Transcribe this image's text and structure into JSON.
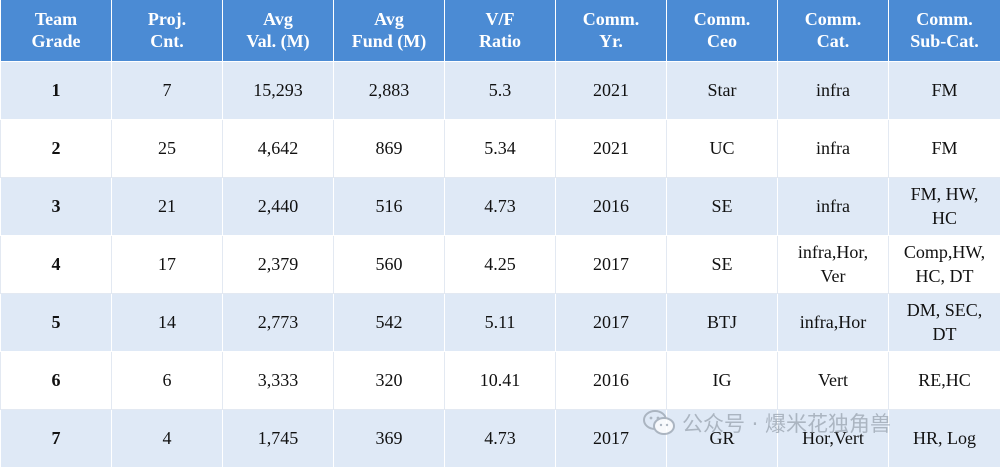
{
  "columns": [
    "Team\nGrade",
    "Proj.\nCnt.",
    "Avg\nVal. (M)",
    "Avg\nFund (M)",
    "V/F\nRatio",
    "Comm.\nYr.",
    "Comm.\nCeo",
    "Comm.\nCat.",
    "Comm.\nSub-Cat."
  ],
  "rows": [
    [
      "1",
      "7",
      "15,293",
      "2,883",
      "5.3",
      "2021",
      "Star",
      "infra",
      "FM"
    ],
    [
      "2",
      "25",
      "4,642",
      "869",
      "5.34",
      "2021",
      "UC",
      "infra",
      "FM"
    ],
    [
      "3",
      "21",
      "2,440",
      "516",
      "4.73",
      "2016",
      "SE",
      "infra",
      "FM, HW,\nHC"
    ],
    [
      "4",
      "17",
      "2,379",
      "560",
      "4.25",
      "2017",
      "SE",
      "infra,Hor,\nVer",
      "Comp,HW,\nHC,   DT"
    ],
    [
      "5",
      "14",
      "2,773",
      "542",
      "5.11",
      "2017",
      "BTJ",
      "infra,Hor",
      "DM, SEC,\nDT"
    ],
    [
      "6",
      "6",
      "3,333",
      "320",
      "10.41",
      "2016",
      "IG",
      "Vert",
      "RE,HC"
    ],
    [
      "7",
      "4",
      "1,745",
      "369",
      "4.73",
      "2017",
      "GR",
      "Hor,Vert",
      "HR, Log"
    ]
  ],
  "watermark": {
    "text": "公众号 · 爆米花独角兽",
    "icon": "wechat-icon"
  }
}
